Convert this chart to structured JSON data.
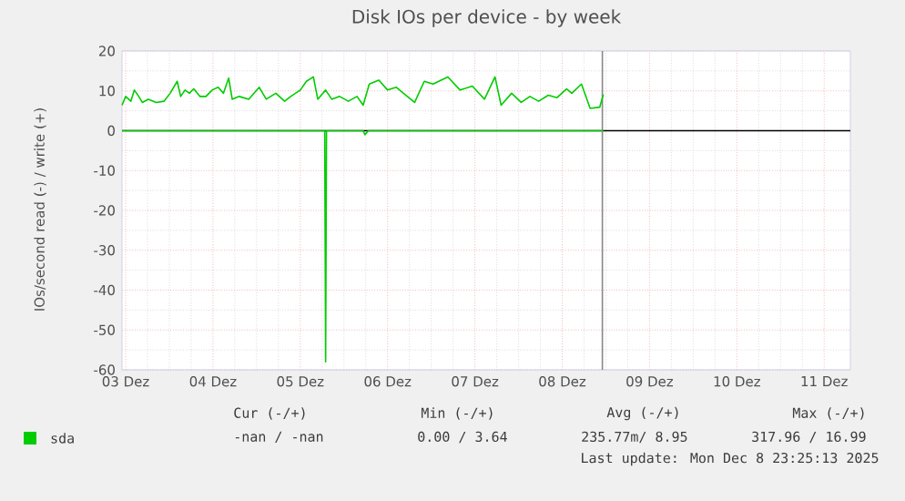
{
  "chart_data": {
    "type": "line",
    "title": "Disk IOs per device - by week",
    "ylabel": "IOs/second read (-) / write (+)",
    "xlim": [
      "2025-12-02T23:00",
      "2025-12-11T07:12"
    ],
    "ylim": [
      -60,
      20
    ],
    "xticks": [
      {
        "value": "2025-12-03",
        "label": "03 Dez"
      },
      {
        "value": "2025-12-04",
        "label": "04 Dez"
      },
      {
        "value": "2025-12-05",
        "label": "05 Dez"
      },
      {
        "value": "2025-12-06",
        "label": "06 Dez"
      },
      {
        "value": "2025-12-07",
        "label": "07 Dez"
      },
      {
        "value": "2025-12-08",
        "label": "08 Dez"
      },
      {
        "value": "2025-12-09",
        "label": "09 Dez"
      },
      {
        "value": "2025-12-10",
        "label": "10 Dez"
      },
      {
        "value": "2025-12-11",
        "label": "11 Dez"
      }
    ],
    "yticks": [
      -60,
      -50,
      -40,
      -30,
      -20,
      -10,
      0,
      10,
      20
    ],
    "grid": true,
    "legend": "bottom",
    "series": [
      {
        "name": "sda",
        "color": "#00cc00",
        "x": [
          "2025-12-02T23:00",
          "2025-12-03T00:00",
          "2025-12-03T01:26",
          "2025-12-03T02:24",
          "2025-12-03T03:36",
          "2025-12-03T04:34",
          "2025-12-03T06:14",
          "2025-12-03T08:24",
          "2025-12-03T10:34",
          "2025-12-03T12:14",
          "2025-12-03T14:10",
          "2025-12-03T15:07",
          "2025-12-03T16:19",
          "2025-12-03T17:31",
          "2025-12-03T18:43",
          "2025-12-03T20:24",
          "2025-12-03T22:05",
          "2025-12-03T23:46",
          "2025-12-04T01:26",
          "2025-12-04T02:53",
          "2025-12-04T04:19",
          "2025-12-04T05:17",
          "2025-12-04T07:12",
          "2025-12-04T09:50",
          "2025-12-04T12:43",
          "2025-12-04T14:38",
          "2025-12-04T17:17",
          "2025-12-04T19:41",
          "2025-12-04T21:22",
          "2025-12-05T00:00",
          "2025-12-05T01:41",
          "2025-12-05T03:36",
          "2025-12-05T04:48",
          "2025-12-05T06:58",
          "2025-12-05T08:38",
          "2025-12-05T10:48",
          "2025-12-05T13:12",
          "2025-12-05T15:36",
          "2025-12-05T17:17",
          "2025-12-05T18:58",
          "2025-12-05T21:36",
          "2025-12-06T00:00",
          "2025-12-06T02:24",
          "2025-12-06T05:02",
          "2025-12-06T07:26",
          "2025-12-06T10:05",
          "2025-12-06T12:29",
          "2025-12-06T16:34",
          "2025-12-06T19:55",
          "2025-12-06T23:17",
          "2025-12-07T02:38",
          "2025-12-07T05:31",
          "2025-12-07T07:12",
          "2025-12-07T10:05",
          "2025-12-07T12:43",
          "2025-12-07T15:07",
          "2025-12-07T17:31",
          "2025-12-07T20:10",
          "2025-12-07T22:34",
          "2025-12-08T01:12",
          "2025-12-08T02:38",
          "2025-12-08T05:17",
          "2025-12-08T07:41",
          "2025-12-08T10:19",
          "2025-12-08T11:17"
        ],
        "values": [
          6.4,
          8.6,
          7.4,
          10.2,
          8.6,
          7.1,
          7.9,
          7.1,
          7.4,
          9.4,
          12.4,
          8.6,
          10.2,
          9.4,
          10.5,
          8.6,
          8.6,
          10.2,
          10.9,
          9.4,
          13.2,
          7.9,
          8.6,
          7.9,
          10.9,
          7.9,
          9.4,
          7.4,
          8.6,
          10.2,
          12.4,
          13.5,
          7.9,
          10.2,
          7.9,
          8.6,
          7.4,
          8.6,
          6.4,
          11.7,
          12.7,
          10.2,
          10.9,
          8.9,
          7.1,
          12.4,
          11.7,
          13.5,
          10.2,
          11.2,
          7.9,
          13.5,
          6.4,
          9.4,
          7.1,
          8.6,
          7.4,
          8.9,
          8.3,
          10.5,
          9.4,
          11.7,
          5.6,
          5.9,
          9.1
        ]
      },
      {
        "color": "#00cc00",
        "x": [
          "2025-12-02T23:00",
          "2025-12-05T06:43",
          "2025-12-05T06:58",
          "2025-12-05T07:12",
          "2025-12-05T17:17",
          "2025-12-05T17:46",
          "2025-12-05T18:43",
          "2025-12-08T11:17"
        ],
        "values": [
          0,
          0,
          -58,
          0,
          0,
          -1,
          0,
          0
        ]
      }
    ],
    "ref_lines": [
      {
        "axis": "y",
        "value": 0,
        "color": "#000000"
      },
      {
        "axis": "x",
        "value": "2025-12-08T11:02",
        "color": "#888888"
      }
    ],
    "annotations": [
      "Cur (-/+)",
      "Min (-/+)",
      "Avg (-/+)",
      "Max (-/+)",
      "-nan /  -nan",
      "0.00 /  3.64",
      "235.77m/  8.95",
      "317.96 / 16.99",
      "Last update: Mon Dec  8 23:25:13 2025"
    ]
  }
}
